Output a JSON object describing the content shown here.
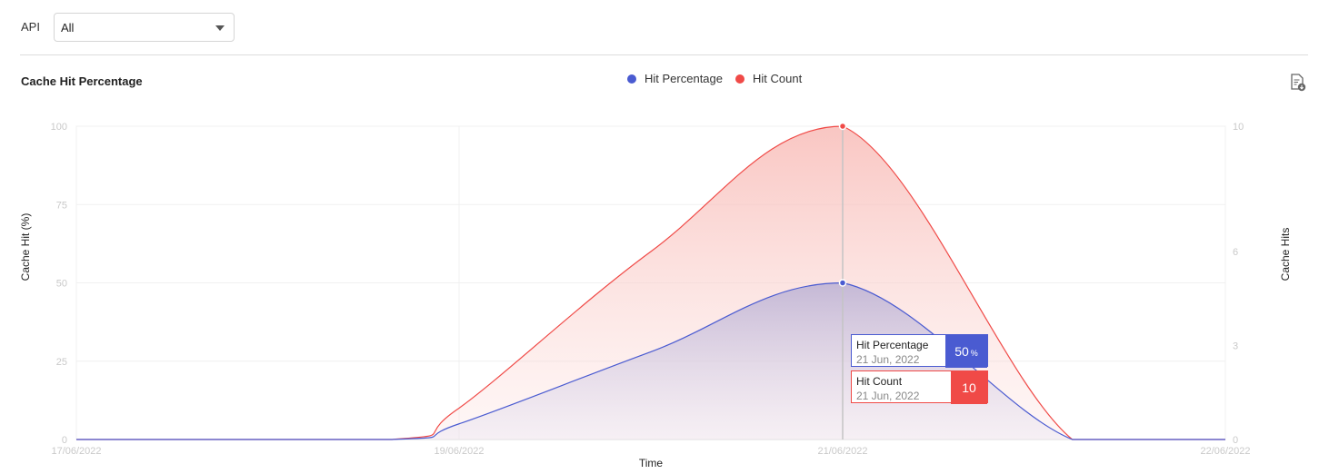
{
  "filter": {
    "label": "API",
    "value": "All"
  },
  "chart_title": "Cache Hit Percentage",
  "legend": [
    {
      "name": "Hit Percentage",
      "color": "#4a5bd1"
    },
    {
      "name": "Hit Count",
      "color": "#f04a47"
    }
  ],
  "export_icon": "export-report-icon",
  "chart_data": {
    "type": "area",
    "x": [
      "17/06/2022",
      "19/06/2022",
      "21/06/2022",
      "22/06/2022"
    ],
    "xlabel": "Time",
    "ylabel_left": "Cache Hit (%)",
    "ylabel_right": "Cache Hits",
    "ylim_left": [
      0,
      100
    ],
    "ylim_right": [
      0,
      10
    ],
    "yticks_left": [
      "0",
      "25",
      "50",
      "75",
      "100"
    ],
    "yticks_right": [
      "0",
      "3",
      "6",
      "10"
    ],
    "grid": true,
    "legend_position": "top-center",
    "series": [
      {
        "name": "Hit Percentage",
        "axis": "left",
        "color": "#4a5bd1",
        "points": [
          {
            "x": "17/06/2022",
            "y": 0
          },
          {
            "x": "18/06/2022",
            "y": 0
          },
          {
            "x": "19/06/2022",
            "y": 5
          },
          {
            "x": "20/06/2022",
            "y": 28
          },
          {
            "x": "21/06/2022",
            "y": 50
          },
          {
            "x": "22/06/2022",
            "y": 0
          },
          {
            "x": "22/06/2022",
            "y": 0
          }
        ]
      },
      {
        "name": "Hit Count",
        "axis": "right",
        "color": "#f04a47",
        "points": [
          {
            "x": "17/06/2022",
            "y": 0
          },
          {
            "x": "18/06/2022",
            "y": 0
          },
          {
            "x": "19/06/2022",
            "y": 1
          },
          {
            "x": "20/06/2022",
            "y": 6
          },
          {
            "x": "21/06/2022",
            "y": 10
          },
          {
            "x": "22/06/2022",
            "y": 0
          },
          {
            "x": "22/06/2022",
            "y": 0
          }
        ]
      }
    ]
  },
  "tooltip": {
    "date": "21 Jun, 2022",
    "items": [
      {
        "name": "Hit Percentage",
        "value": "50",
        "unit": "%",
        "color": "#4a5bd1"
      },
      {
        "name": "Hit Count",
        "value": "10",
        "unit": "",
        "color": "#f04a47"
      }
    ]
  }
}
